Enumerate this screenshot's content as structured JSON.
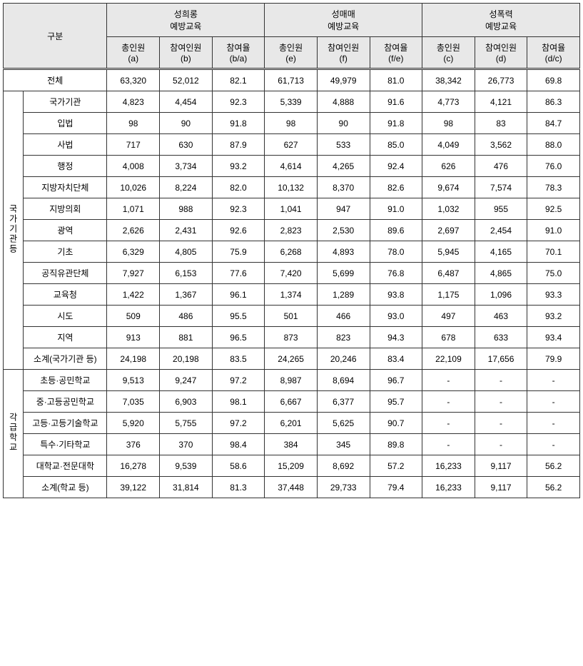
{
  "header": {
    "category_label": "구분",
    "groups": [
      {
        "title": "성희롱",
        "subtitle": "예방교육",
        "cols": [
          {
            "l1": "총인원",
            "l2": "(a)"
          },
          {
            "l1": "참여인원",
            "l2": "(b)"
          },
          {
            "l1": "참여율",
            "l2": "(b/a)"
          }
        ]
      },
      {
        "title": "성매매",
        "subtitle": "예방교육",
        "cols": [
          {
            "l1": "총인원",
            "l2": "(e)"
          },
          {
            "l1": "참여인원",
            "l2": "(f)"
          },
          {
            "l1": "참여율",
            "l2": "(f/e)"
          }
        ]
      },
      {
        "title": "성폭력",
        "subtitle": "예방교육",
        "cols": [
          {
            "l1": "총인원",
            "l2": "(c)"
          },
          {
            "l1": "참여인원",
            "l2": "(d)"
          },
          {
            "l1": "참여율",
            "l2": "(d/c)"
          }
        ]
      }
    ]
  },
  "total": {
    "label": "전체",
    "vals": [
      "63,320",
      "52,012",
      "82.1",
      "61,713",
      "49,979",
      "81.0",
      "38,342",
      "26,773",
      "69.8"
    ]
  },
  "section1": {
    "vlabel": "국가기관등",
    "rows": [
      {
        "label": "국가기관",
        "vals": [
          "4,823",
          "4,454",
          "92.3",
          "5,339",
          "4,888",
          "91.6",
          "4,773",
          "4,121",
          "86.3"
        ]
      },
      {
        "label": "입법",
        "vals": [
          "98",
          "90",
          "91.8",
          "98",
          "90",
          "91.8",
          "98",
          "83",
          "84.7"
        ]
      },
      {
        "label": "사법",
        "vals": [
          "717",
          "630",
          "87.9",
          "627",
          "533",
          "85.0",
          "4,049",
          "3,562",
          "88.0"
        ]
      },
      {
        "label": "행정",
        "vals": [
          "4,008",
          "3,734",
          "93.2",
          "4,614",
          "4,265",
          "92.4",
          "626",
          "476",
          "76.0"
        ]
      },
      {
        "label": "지방자치단체",
        "vals": [
          "10,026",
          "8,224",
          "82.0",
          "10,132",
          "8,370",
          "82.6",
          "9,674",
          "7,574",
          "78.3"
        ]
      },
      {
        "label": "지방의회",
        "vals": [
          "1,071",
          "988",
          "92.3",
          "1,041",
          "947",
          "91.0",
          "1,032",
          "955",
          "92.5"
        ]
      },
      {
        "label": "광역",
        "vals": [
          "2,626",
          "2,431",
          "92.6",
          "2,823",
          "2,530",
          "89.6",
          "2,697",
          "2,454",
          "91.0"
        ]
      },
      {
        "label": "기초",
        "vals": [
          "6,329",
          "4,805",
          "75.9",
          "6,268",
          "4,893",
          "78.0",
          "5,945",
          "4,165",
          "70.1"
        ]
      },
      {
        "label": "공직유관단체",
        "vals": [
          "7,927",
          "6,153",
          "77.6",
          "7,420",
          "5,699",
          "76.8",
          "6,487",
          "4,865",
          "75.0"
        ]
      },
      {
        "label": "교육청",
        "vals": [
          "1,422",
          "1,367",
          "96.1",
          "1,374",
          "1,289",
          "93.8",
          "1,175",
          "1,096",
          "93.3"
        ]
      },
      {
        "label": "시도",
        "vals": [
          "509",
          "486",
          "95.5",
          "501",
          "466",
          "93.0",
          "497",
          "463",
          "93.2"
        ]
      },
      {
        "label": "지역",
        "vals": [
          "913",
          "881",
          "96.5",
          "873",
          "823",
          "94.3",
          "678",
          "633",
          "93.4"
        ]
      },
      {
        "label": "소계(국가기관 등)",
        "vals": [
          "24,198",
          "20,198",
          "83.5",
          "24,265",
          "20,246",
          "83.4",
          "22,109",
          "17,656",
          "79.9"
        ]
      }
    ]
  },
  "section2": {
    "vlabel": "각급학교",
    "rows": [
      {
        "label": "초등·공민학교",
        "vals": [
          "9,513",
          "9,247",
          "97.2",
          "8,987",
          "8,694",
          "96.7",
          "-",
          "-",
          "-"
        ]
      },
      {
        "label": "중·고등공민학교",
        "vals": [
          "7,035",
          "6,903",
          "98.1",
          "6,667",
          "6,377",
          "95.7",
          "-",
          "-",
          "-"
        ]
      },
      {
        "label": "고등·고등기술학교",
        "vals": [
          "5,920",
          "5,755",
          "97.2",
          "6,201",
          "5,625",
          "90.7",
          "-",
          "-",
          "-"
        ]
      },
      {
        "label": "특수·기타학교",
        "vals": [
          "376",
          "370",
          "98.4",
          "384",
          "345",
          "89.8",
          "-",
          "-",
          "-"
        ]
      },
      {
        "label": "대학교·전문대학",
        "vals": [
          "16,278",
          "9,539",
          "58.6",
          "15,209",
          "8,692",
          "57.2",
          "16,233",
          "9,117",
          "56.2"
        ]
      },
      {
        "label": "소계(학교 등)",
        "vals": [
          "39,122",
          "31,814",
          "81.3",
          "37,448",
          "29,733",
          "79.4",
          "16,233",
          "9,117",
          "56.2"
        ]
      }
    ]
  }
}
